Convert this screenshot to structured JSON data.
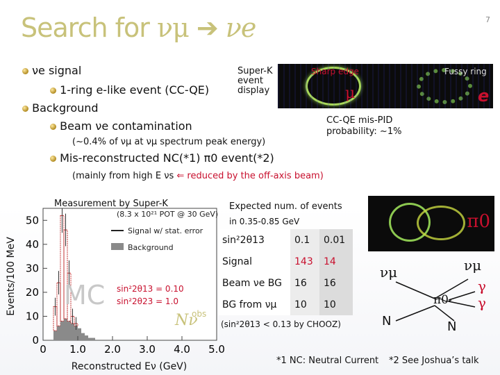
{
  "title": {
    "prefix": "Search for ",
    "nu_mu": "νμ",
    "arrow": "➔",
    "nu_e": "νe"
  },
  "page_number": "7",
  "bullets": {
    "signal": "νe signal",
    "signal_sub": "1-ring e-like event (CC-QE)",
    "background": "Background",
    "bg_beam": "Beam νe contamination",
    "bg_beam_note": "(~0.4% of νμ at νμ spectrum peak energy)",
    "bg_nc": "Mis-reconstructed NC(*1) π0 event(*2)",
    "bg_nc_note_a": "(mainly from high E νs ",
    "bg_nc_note_arrow": "⇐",
    "bg_nc_note_b": " reduced by the off-axis beam)"
  },
  "event_display": {
    "label": "Super-K event display",
    "sharp": "Sharp edge",
    "fuzzy": "Fussy ring",
    "mu": "μ",
    "e": "e",
    "misid": "CC-QE mis-PID probability: ~1%",
    "pi0": "π0"
  },
  "measurement_label": "Measurement by Super-K",
  "chart_data": {
    "type": "bar",
    "xlabel": "Reconstructed Eν (GeV)",
    "ylabel": "Events/100 MeV",
    "xlim": [
      0,
      5.0
    ],
    "ylim": [
      0,
      55
    ],
    "xticks": [
      "0",
      "1.0",
      "2.0",
      "3.0",
      "4.0",
      "5.0"
    ],
    "yticks": [
      "0",
      "10",
      "20",
      "30",
      "40",
      "50"
    ],
    "legend": [
      "(8.3 x 10²¹ POT @ 30 GeV)",
      "Signal w/ stat. error",
      "Background"
    ],
    "legend_placement": "top-right",
    "annotation_mc": "MC",
    "annotation_params": [
      "sin²2θ13 = 0.10",
      "sin²2θ23 = 1.0"
    ],
    "annotation_nobs": "Nν",
    "annotation_nobs_sup": "obs",
    "x": [
      0.35,
      0.45,
      0.55,
      0.65,
      0.75,
      0.85,
      0.95,
      1.05,
      1.15,
      1.25,
      1.35,
      1.45,
      1.55,
      1.65,
      1.75,
      1.85,
      1.95,
      2.05,
      2.15,
      2.25,
      2.35,
      2.45,
      2.55,
      2.65,
      2.75
    ],
    "series": [
      {
        "name": "Signal w/ stat. error",
        "values": [
          14,
          24,
          52,
          46,
          28,
          10,
          7,
          5,
          3,
          2,
          1,
          1,
          0,
          0,
          0,
          0,
          0,
          0,
          0,
          0,
          0,
          0,
          0,
          0,
          0
        ]
      },
      {
        "name": "Background",
        "values": [
          4,
          6,
          8,
          9,
          8,
          7,
          6,
          5,
          5,
          4,
          4,
          3,
          3,
          3,
          2,
          2,
          2,
          2,
          1,
          1,
          1,
          1,
          1,
          1,
          1
        ]
      }
    ]
  },
  "expected": {
    "title": "Expected num. of events",
    "range": "in 0.35-0.85 GeV",
    "rows": [
      {
        "label": "sin²2θ13",
        "v1": "0.1",
        "v2": "0.01"
      },
      {
        "label": "Signal",
        "v1": "143",
        "v2": "14"
      },
      {
        "label": "Beam νe BG",
        "v1": "16",
        "v2": "16"
      },
      {
        "label": "BG from νμ",
        "v1": "10",
        "v2": "10"
      }
    ],
    "note": "(sin²2θ13 < 0.13 by CHOOZ)"
  },
  "feynman": {
    "nu_in": "νμ",
    "n_in": "N",
    "pi0": "π0",
    "n_out": "N",
    "nu_out": "νμ",
    "gamma1": "γ",
    "gamma2": "γ"
  },
  "footnotes": {
    "f1": "*1 NC: Neutral Current",
    "f2": "*2 See Joshua’s talk"
  },
  "colors": {
    "title": "#c8c27a",
    "red": "#c8102e",
    "signal": "#c03030",
    "background": "#8a8a8a"
  }
}
